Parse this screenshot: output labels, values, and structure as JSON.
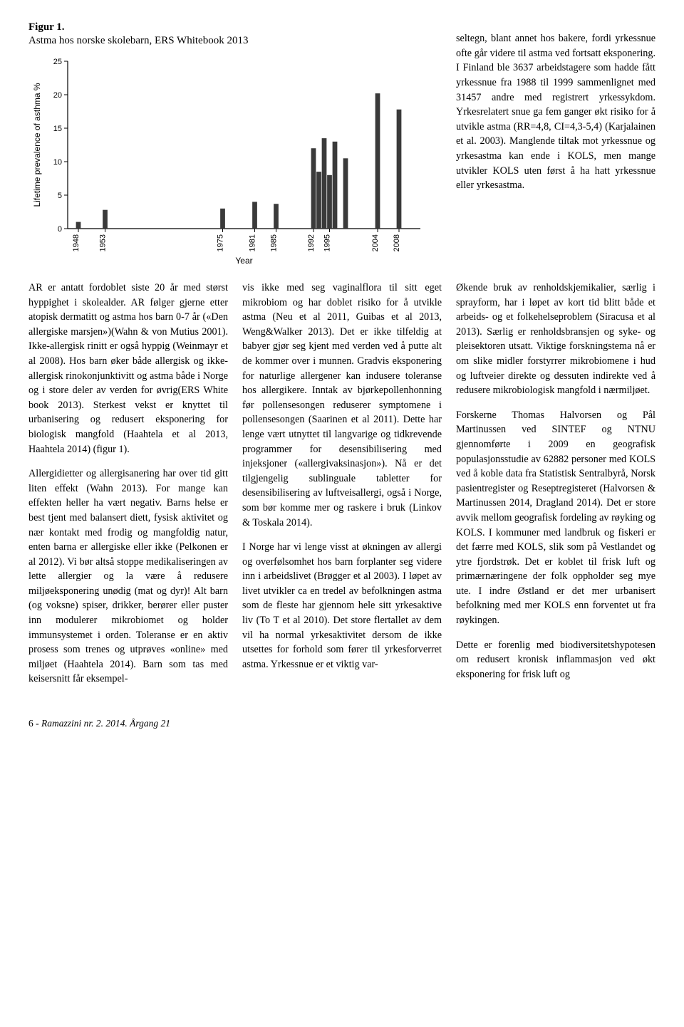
{
  "figure": {
    "label": "Figur 1.",
    "title": "Astma hos norske skolebarn, ERS Whitebook 2013",
    "chart": {
      "type": "bar",
      "ylabel": "Lifetime prevalence of asthma %",
      "xlabel": "Year",
      "ylim": [
        0,
        25
      ],
      "ytick_step": 5,
      "yticks": [
        0,
        5,
        10,
        15,
        20,
        25
      ],
      "xlim": [
        1946,
        2012
      ],
      "xticks": [
        1948,
        1953,
        1975,
        1981,
        1985,
        1992,
        1995,
        2004,
        2008
      ],
      "bars": [
        {
          "x": 1948,
          "y": 1.0
        },
        {
          "x": 1953,
          "y": 2.8
        },
        {
          "x": 1975,
          "y": 3.0
        },
        {
          "x": 1981,
          "y": 4.0
        },
        {
          "x": 1985,
          "y": 3.7
        },
        {
          "x": 1992,
          "y": 12.0
        },
        {
          "x": 1993,
          "y": 8.5
        },
        {
          "x": 1994,
          "y": 13.5
        },
        {
          "x": 1995,
          "y": 8.0
        },
        {
          "x": 1996,
          "y": 13.0
        },
        {
          "x": 1998,
          "y": 10.5
        },
        {
          "x": 2004,
          "y": 20.2
        },
        {
          "x": 2008,
          "y": 17.8
        }
      ],
      "bar_color": "#3a3a3a",
      "axis_color": "#000000",
      "tick_font_size": 11,
      "label_font_size": 12,
      "bar_width_years": 0.9,
      "background_color": "#ffffff"
    }
  },
  "top_right_text": "seltegn, blant annet hos bakere, fordi yrkessnue ofte går videre til astma ved fortsatt eksponering. I Finland ble 3637 arbeidstagere som hadde fått yrkessnue fra 1988 til 1999 sammenlignet med 31457 andre med registrert yrkessykdom. Yrkesrelatert snue ga fem ganger økt risiko for å utvikle astma (RR=4,8, CI=4,3-5,4) (Karjalainen et al. 2003). Manglende tiltak mot yrkessnue og yrkesastma kan ende i KOLS, men mange utvikler KOLS uten først å ha hatt yrkessnue eller yrkesastma.",
  "col1": {
    "p1": "AR er antatt fordoblet siste 20 år med størst hyppighet i skolealder. AR følger gjerne etter atopisk dermatitt og astma hos barn 0-7 år («Den allergiske marsjen»)(Wahn & von Mutius 2001). Ikke-allergisk rinitt er også hyppig (Weinmayr et al 2008). Hos barn øker både allergisk og ikke-allergisk rinokonjunktivitt og astma både i Norge og i store deler av verden for øvrig(ERS White book 2013). Sterkest vekst er knyttet til urbanisering og redusert eksponering for biologisk mangfold (Haahtela et al 2013, Haahtela 2014) (figur 1).",
    "p2": "Allergidietter og allergisanering har over tid gitt liten effekt (Wahn 2013). For mange kan effekten heller ha vært negativ. Barns helse er best tjent med balansert diett, fysisk aktivitet og nær kontakt med frodig og mangfoldig natur, enten barna er allergiske eller ikke (Pelkonen er al 2012). Vi bør altså stoppe medikaliseringen av lette allergier og la være å redusere miljøeksponering unødig (mat og dyr)! Alt barn (og voksne) spiser, drikker, berører eller puster inn modulerer mikrobiomet og holder immunsystemet i orden. Toleranse er en aktiv prosess som trenes og utprøves «online» med miljøet (Haahtela 2014). Barn som tas med keisersnitt får eksempel-"
  },
  "col2": {
    "p1": "vis ikke med seg vaginalflora til sitt eget mikrobiom og har doblet risiko for å utvikle astma (Neu et al 2011, Guibas et al 2013, Weng&Walker 2013). Det er ikke tilfeldig at babyer gjør seg kjent med verden ved å putte alt de kommer over i munnen. Gradvis eksponering for naturlige allergener kan indusere toleranse hos allergikere. Inntak av bjørkepollenhonning før pollensesongen reduserer symptomene i pollensesongen (Saarinen et al 2011). Dette har lenge vært utnyttet til langvarige og tidkrevende programmer for desensibilisering med injeksjoner («allergivaksinasjon»). Nå er det tilgjengelig sublinguale tabletter for desensibilisering av luftveisallergi, også i Norge, som bør komme mer og raskere i bruk (Linkov & Toskala 2014).",
    "p2": "I Norge har vi lenge visst at økningen av allergi og overfølsomhet hos barn forplanter seg videre inn i arbeidslivet (Brøgger et al 2003). I løpet av livet utvikler ca en tredel av befolkningen astma som de fleste har gjennom hele sitt yrkesaktive liv (To T et al 2010). Det store flertallet av dem vil ha normal yrkesaktivitet dersom de ikke utsettes for forhold som fører til yrkesforverret astma. Yrkessnue er et viktig var-"
  },
  "col3": {
    "p1": "Økende bruk av renholdskjemikalier, særlig i sprayform, har i løpet av kort tid blitt både et arbeids- og et folkehelseproblem (Siracusa et al 2013). Særlig er renholdsbransjen og syke- og pleisektoren utsatt. Viktige forskningstema nå er om slike midler forstyrrer mikrobiomene i hud og luftveier direkte og dessuten indirekte ved å redusere mikrobiologisk mangfold i nærmiljøet.",
    "p2": "Forskerne Thomas Halvorsen og Pål Martinussen ved SINTEF og NTNU gjennomførte i 2009 en geografisk populasjonsstudie av 62882 personer med KOLS ved å koble data fra Statistisk Sentralbyrå, Norsk pasientregister og Reseptregisteret (Halvorsen & Martinussen 2014, Dragland 2014). Det er store avvik mellom geografisk fordeling av røyking og KOLS. I kommuner med landbruk og fiskeri er det færre med KOLS, slik som på Vestlandet og ytre fjordstrøk. Det er koblet til frisk luft og primærnæringene der folk oppholder seg mye ute. I indre Østland er det mer urbanisert befolkning med mer KOLS enn forventet ut fra røykingen.",
    "p3": "Dette er forenlig med biodiversitetshypotesen om redusert kronisk inflammasjon ved økt eksponering for frisk luft og"
  },
  "footer": {
    "page": "6",
    "journal": "Ramazzini nr. 2. 2014. Årgang 21"
  }
}
